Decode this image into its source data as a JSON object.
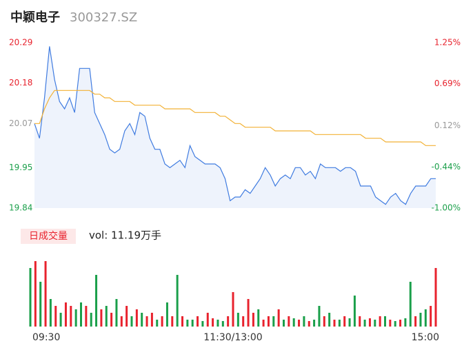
{
  "chart_data": [
    {
      "type": "line",
      "title": "中颖电子",
      "subtitle": "300327.SZ",
      "x": [
        0,
        3,
        6,
        9,
        12,
        15,
        18,
        21,
        24,
        27,
        30,
        33,
        36,
        39,
        42,
        45,
        48,
        51,
        54,
        57,
        60,
        63,
        66,
        69,
        72,
        75,
        78,
        81,
        84,
        87,
        90,
        93,
        96,
        99,
        102,
        105,
        108,
        111,
        114,
        117,
        120,
        123,
        126,
        129,
        132,
        135,
        138,
        141,
        144,
        147,
        150,
        153,
        156,
        159,
        162,
        165,
        168,
        171,
        174,
        177,
        180,
        183,
        186,
        189,
        192,
        195,
        198,
        201,
        204,
        207,
        210,
        213,
        216,
        219,
        222,
        225,
        228,
        231,
        234,
        237,
        240
      ],
      "xlim": [
        0,
        240
      ],
      "ylim": [
        19.84,
        20.29
      ],
      "yticks": [
        20.29,
        20.18,
        20.07,
        19.95,
        19.84
      ],
      "y2lim": [
        -1.0,
        1.25
      ],
      "y2ticks": [
        {
          "value": 1.25,
          "label": "1.25%"
        },
        {
          "value": 0.69,
          "label": "0.69%"
        },
        {
          "value": 0.12,
          "label": "0.12%"
        },
        {
          "value": -0.44,
          "label": "-0.44%"
        },
        {
          "value": -1.0,
          "label": "-1.00%"
        }
      ],
      "ytick_colors": [
        "#e8222d",
        "#e8222d",
        "#999999",
        "#1a9f4a",
        "#1a9f4a"
      ],
      "area_color": "#eef3fc",
      "series": [
        {
          "color": "#3f7be0",
          "values": [
            20.07,
            20.03,
            20.14,
            20.28,
            20.19,
            20.13,
            20.11,
            20.14,
            20.1,
            20.22,
            20.22,
            20.22,
            20.1,
            20.07,
            20.04,
            20.0,
            19.99,
            20.0,
            20.05,
            20.07,
            20.04,
            20.1,
            20.09,
            20.03,
            20.0,
            20.0,
            19.96,
            19.95,
            19.96,
            19.97,
            19.95,
            20.01,
            19.98,
            19.97,
            19.96,
            19.96,
            19.96,
            19.95,
            19.92,
            19.86,
            19.87,
            19.87,
            19.89,
            19.88,
            19.9,
            19.92,
            19.95,
            19.93,
            19.9,
            19.92,
            19.93,
            19.92,
            19.95,
            19.95,
            19.93,
            19.94,
            19.92,
            19.96,
            19.95,
            19.95,
            19.95,
            19.94,
            19.95,
            19.95,
            19.94,
            19.9,
            19.9,
            19.9,
            19.87,
            19.86,
            19.85,
            19.87,
            19.88,
            19.86,
            19.85,
            19.88,
            19.9,
            19.9,
            19.9,
            19.92,
            19.92
          ]
        },
        {
          "color": "#f2b134",
          "values": [
            20.07,
            20.07,
            20.11,
            20.14,
            20.16,
            20.16,
            20.16,
            20.16,
            20.16,
            20.16,
            20.16,
            20.16,
            20.15,
            20.15,
            20.14,
            20.14,
            20.13,
            20.13,
            20.13,
            20.13,
            20.12,
            20.12,
            20.12,
            20.12,
            20.12,
            20.12,
            20.11,
            20.11,
            20.11,
            20.11,
            20.11,
            20.11,
            20.1,
            20.1,
            20.1,
            20.1,
            20.1,
            20.09,
            20.09,
            20.08,
            20.07,
            20.07,
            20.06,
            20.06,
            20.06,
            20.06,
            20.06,
            20.06,
            20.05,
            20.05,
            20.05,
            20.05,
            20.05,
            20.05,
            20.05,
            20.05,
            20.04,
            20.04,
            20.04,
            20.04,
            20.04,
            20.04,
            20.04,
            20.04,
            20.04,
            20.04,
            20.03,
            20.03,
            20.03,
            20.03,
            20.02,
            20.02,
            20.02,
            20.02,
            20.02,
            20.02,
            20.02,
            20.02,
            20.01,
            20.01,
            20.01
          ]
        }
      ]
    },
    {
      "type": "bar",
      "title": "日成交量",
      "subtitle": "vol: 11.19万手",
      "xlim": [
        0,
        240
      ],
      "xticks": [
        {
          "value": 0,
          "label": "09:30"
        },
        {
          "value": 120,
          "label": "11:30/13:00"
        },
        {
          "value": 240,
          "label": "15:00"
        }
      ],
      "ylim": [
        0,
        2400
      ],
      "series": [
        {
          "color": "#e8222d",
          "x": [
            3,
            9,
            15,
            21,
            24,
            33,
            42,
            48,
            54,
            57,
            63,
            69,
            72,
            78,
            84,
            90,
            99,
            105,
            108,
            117,
            120,
            126,
            129,
            132,
            138,
            141,
            147,
            153,
            159,
            165,
            174,
            180,
            186,
            195,
            201,
            207,
            213,
            219,
            228,
            237,
            240
          ],
          "values": [
            2280,
            2280,
            720,
            840,
            720,
            720,
            600,
            480,
            360,
            720,
            600,
            360,
            480,
            360,
            360,
            360,
            360,
            480,
            288,
            360,
            1200,
            360,
            960,
            480,
            240,
            360,
            600,
            360,
            240,
            192,
            360,
            240,
            360,
            360,
            288,
            360,
            240,
            240,
            360,
            720,
            2040
          ]
        },
        {
          "color": "#1a9f4a",
          "x": [
            0,
            6,
            12,
            18,
            27,
            30,
            36,
            39,
            45,
            51,
            60,
            66,
            75,
            81,
            87,
            93,
            96,
            102,
            111,
            114,
            123,
            135,
            144,
            150,
            156,
            162,
            168,
            171,
            177,
            183,
            189,
            192,
            198,
            204,
            210,
            216,
            222,
            225,
            231,
            234
          ],
          "values": [
            2040,
            1560,
            960,
            480,
            600,
            840,
            480,
            1800,
            720,
            960,
            360,
            480,
            240,
            840,
            1800,
            240,
            240,
            192,
            240,
            192,
            480,
            600,
            360,
            240,
            288,
            360,
            240,
            720,
            480,
            240,
            288,
            1080,
            240,
            240,
            360,
            192,
            288,
            1560,
            480,
            600
          ]
        }
      ]
    }
  ]
}
